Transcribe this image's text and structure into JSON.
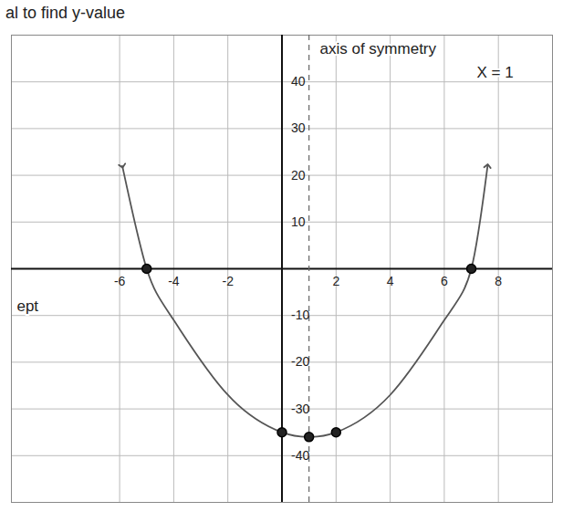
{
  "chart_data": {
    "type": "line",
    "title": "al to find y-value",
    "x": [
      -5.9,
      -5,
      -4,
      -2,
      0,
      1,
      2,
      4,
      6,
      7,
      7.6
    ],
    "values": [
      22,
      0,
      -11,
      -27,
      -35,
      -36,
      -35,
      -27,
      -11,
      0,
      22
    ],
    "color": "#555555",
    "marker": "arrow",
    "line_style": "solid",
    "points": {
      "x": [
        -5,
        0,
        1,
        2,
        7
      ],
      "values": [
        0,
        -35,
        -36,
        -35,
        0
      ],
      "color": "#222222"
    },
    "axis_of_symmetry": 1,
    "annotations": [
      {
        "text": "axis of symmetry",
        "x": 1.4,
        "y": 47
      },
      {
        "text": "X = 1",
        "x": 7.2,
        "y": 42
      },
      {
        "text": "ept",
        "x": -9.8,
        "y": -8
      }
    ],
    "xlim": [
      -10,
      10
    ],
    "ylim": [
      -50,
      50
    ],
    "xticks": [
      -6,
      -4,
      -2,
      2,
      4,
      6,
      8
    ],
    "yticks": [
      -40,
      -30,
      -20,
      -10,
      10,
      20,
      30,
      40
    ],
    "grid": true
  }
}
